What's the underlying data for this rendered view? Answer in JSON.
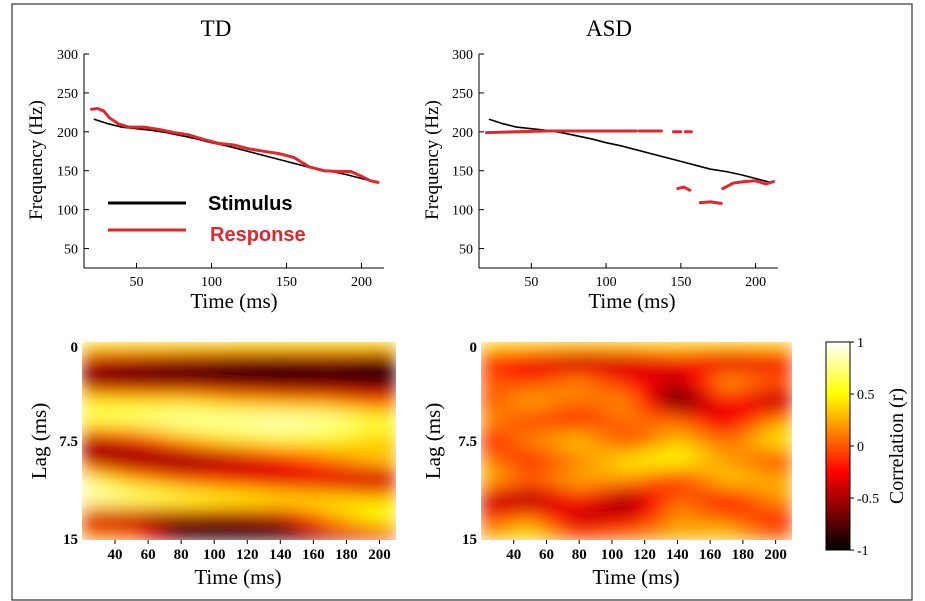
{
  "colors": {
    "stimulus": "#000000",
    "response": "#e3262b",
    "frame": "#333333"
  },
  "legend": {
    "stimulus_label": "Stimulus",
    "response_label": "Response"
  },
  "colorbar": {
    "label": "Correlation (r)",
    "ticks": [
      "1",
      "0.5",
      "0",
      "-0.5",
      "-1"
    ],
    "tick_values": [
      1,
      0.5,
      0,
      -0.5,
      -1
    ],
    "range": [
      -1,
      1
    ],
    "colormap": "hot"
  },
  "chart_data": [
    {
      "type": "line",
      "title": "TD",
      "xlabel": "Time (ms)",
      "ylabel": "Frequency (Hz)",
      "xlim": [
        15,
        215
      ],
      "ylim": [
        25,
        300
      ],
      "x_ticks": [
        50,
        100,
        150,
        200
      ],
      "y_ticks": [
        50,
        100,
        150,
        200,
        250,
        300
      ],
      "legend_position": "lower-left",
      "series": [
        {
          "name": "Stimulus",
          "color": "#000000",
          "x": [
            22,
            30,
            40,
            50,
            60,
            70,
            80,
            90,
            100,
            110,
            120,
            130,
            140,
            150,
            160,
            170,
            180,
            190,
            200,
            210
          ],
          "y": [
            216,
            211,
            206,
            204,
            202,
            199,
            195,
            191,
            186,
            182,
            177,
            172,
            167,
            162,
            157,
            152,
            149,
            145,
            140,
            135
          ]
        },
        {
          "name": "Response",
          "color": "#e3262b",
          "x": [
            20,
            24,
            28,
            32,
            38,
            45,
            55,
            65,
            75,
            85,
            95,
            105,
            115,
            125,
            135,
            145,
            155,
            165,
            175,
            185,
            193,
            200,
            206,
            211
          ],
          "y": [
            229,
            230,
            227,
            218,
            210,
            206,
            206,
            203,
            199,
            196,
            190,
            185,
            183,
            178,
            175,
            172,
            167,
            155,
            150,
            149,
            149,
            143,
            137,
            135
          ]
        }
      ]
    },
    {
      "type": "line",
      "title": "ASD",
      "xlabel": "Time (ms)",
      "ylabel": "Frequency (Hz)",
      "xlim": [
        15,
        215
      ],
      "ylim": [
        25,
        300
      ],
      "x_ticks": [
        50,
        100,
        150,
        200
      ],
      "y_ticks": [
        50,
        100,
        150,
        200,
        250,
        300
      ],
      "series": [
        {
          "name": "Stimulus",
          "color": "#000000",
          "x": [
            22,
            30,
            40,
            50,
            60,
            70,
            80,
            90,
            100,
            110,
            120,
            130,
            140,
            150,
            160,
            170,
            180,
            190,
            200,
            210
          ],
          "y": [
            216,
            211,
            206,
            204,
            202,
            199,
            195,
            191,
            186,
            182,
            177,
            172,
            167,
            162,
            157,
            152,
            149,
            145,
            140,
            135
          ]
        },
        {
          "name": "Response",
          "color": "#e3262b",
          "segments": [
            {
              "x": [
                20,
                40,
                60,
                80,
                100,
                120
              ],
              "y": [
                199,
                200,
                201,
                201,
                201,
                201
              ]
            },
            {
              "x": [
                122,
                130,
                137
              ],
              "y": [
                201,
                201,
                201
              ]
            },
            {
              "x": [
                145,
                150
              ],
              "y": [
                200,
                200
              ]
            },
            {
              "x": [
                153,
                157
              ],
              "y": [
                200,
                200
              ]
            },
            {
              "x": [
                148,
                152,
                156
              ],
              "y": [
                127,
                129,
                125
              ]
            },
            {
              "x": [
                163,
                170,
                177
              ],
              "y": [
                109,
                110,
                108
              ]
            },
            {
              "x": [
                178,
                185,
                192,
                200,
                207,
                212
              ],
              "y": [
                127,
                134,
                136,
                137,
                133,
                136
              ]
            }
          ]
        }
      ]
    },
    {
      "type": "heatmap",
      "xlabel": "Time (ms)",
      "ylabel": "Lag (ms)",
      "xlim": [
        20,
        210
      ],
      "ylim": [
        0,
        15
      ],
      "x_ticks": [
        40,
        60,
        80,
        100,
        120,
        140,
        160,
        180,
        200
      ],
      "y_ticks": [
        0,
        7.5,
        15
      ],
      "y_tick_labels": [
        "0",
        "7.5",
        "15"
      ],
      "x_samples": [
        20,
        50,
        80,
        110,
        140,
        170,
        200
      ],
      "lag_samples": [
        0,
        1.5,
        3,
        4.5,
        6,
        7.5,
        9,
        10.5,
        12,
        13.5,
        15
      ],
      "values": [
        [
          0.8,
          0.8,
          0.8,
          0.8,
          0.8,
          0.8,
          0.8
        ],
        [
          -0.5,
          -0.6,
          -0.7,
          -0.8,
          -0.85,
          -0.8,
          -0.9
        ],
        [
          -0.7,
          -0.8,
          -0.85,
          -0.9,
          -0.95,
          -0.9,
          -0.95
        ],
        [
          0.6,
          0.5,
          0.5,
          0.3,
          0.2,
          0.1,
          -0.1
        ],
        [
          0.7,
          0.8,
          0.9,
          0.9,
          0.95,
          0.9,
          0.7
        ],
        [
          -0.6,
          -0.3,
          0.2,
          0.5,
          0.6,
          0.5,
          0.3
        ],
        [
          -0.5,
          -0.7,
          -0.8,
          -0.6,
          -0.3,
          0.1,
          0.4
        ],
        [
          0.85,
          0.3,
          0.0,
          -0.2,
          -0.4,
          -0.5,
          -0.6
        ],
        [
          0.95,
          0.9,
          0.8,
          0.7,
          0.6,
          0.5,
          0.4
        ],
        [
          -0.6,
          -0.7,
          -0.8,
          -0.8,
          -0.6,
          0.2,
          0.6
        ],
        [
          0.4,
          0.3,
          -0.8,
          -0.9,
          -0.95,
          -0.7,
          -0.5
        ]
      ]
    },
    {
      "type": "heatmap",
      "xlabel": "Time (ms)",
      "ylabel": "Lag (ms)",
      "xlim": [
        20,
        210
      ],
      "ylim": [
        0,
        15
      ],
      "x_ticks": [
        40,
        60,
        80,
        100,
        120,
        140,
        160,
        180,
        200
      ],
      "y_ticks": [
        0,
        7.5,
        15
      ],
      "y_tick_labels": [
        "0",
        "7.5",
        "15"
      ],
      "x_samples": [
        20,
        50,
        80,
        110,
        140,
        170,
        200
      ],
      "lag_samples": [
        0,
        1.5,
        3,
        4.5,
        6,
        7.5,
        9,
        10.5,
        12,
        13.5,
        15
      ],
      "values": [
        [
          0.6,
          0.6,
          0.6,
          0.6,
          0.6,
          0.6,
          0.6
        ],
        [
          -0.2,
          -0.4,
          -0.6,
          -0.5,
          -0.3,
          -0.5,
          -0.4
        ],
        [
          0.1,
          -0.1,
          0.2,
          -0.2,
          -0.4,
          0.3,
          0.1
        ],
        [
          -0.1,
          0.3,
          0.1,
          0.2,
          -0.9,
          -0.2,
          -0.6
        ],
        [
          0.3,
          -0.1,
          -0.2,
          0.1,
          0.1,
          -0.4,
          0.2
        ],
        [
          -0.3,
          0.2,
          0.4,
          -0.1,
          0.3,
          0.1,
          0.5
        ],
        [
          0.2,
          -0.2,
          0.1,
          0.5,
          0.6,
          0.2,
          -0.1
        ],
        [
          0.4,
          0.1,
          0.3,
          0.2,
          -0.2,
          0.4,
          0.3
        ],
        [
          -0.5,
          -0.7,
          -0.2,
          -0.7,
          0.1,
          -0.3,
          0.2
        ],
        [
          -0.1,
          0.2,
          -0.5,
          -0.3,
          0.2,
          0.1,
          -0.2
        ],
        [
          0.3,
          0.5,
          0.1,
          0.2,
          0.3,
          0.4,
          0.1
        ]
      ]
    }
  ]
}
